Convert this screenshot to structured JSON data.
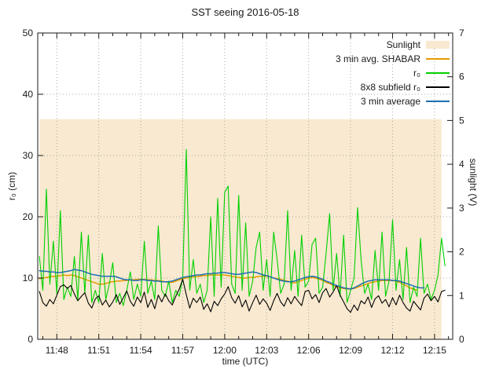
{
  "chart_data": {
    "type": "line",
    "title": "SST seeing 2016-05-18",
    "xlabel": "time (UTC)",
    "ylabel_left": "r₀ (cm)",
    "ylabel_right": "sunlight (V)",
    "grid": true,
    "legend": {
      "position": "inside-top-right"
    },
    "x_axis": {
      "start": "11:46:38",
      "end": "12:16:18",
      "major_ticks": [
        "11:48",
        "11:51",
        "11:54",
        "11:57",
        "12:00",
        "12:03",
        "12:06",
        "12:09",
        "12:12",
        "12:15"
      ],
      "minor_tick_interval_s": 60
    },
    "y_left": {
      "min": 0,
      "max": 50,
      "ticks": [
        0,
        10,
        20,
        30,
        40,
        50
      ]
    },
    "y_right": {
      "min": 0,
      "max": 7,
      "ticks": [
        0,
        1,
        2,
        3,
        4,
        5,
        6,
        7
      ]
    },
    "sample_interval_s": 15,
    "series": [
      {
        "name": "Sunlight",
        "slug": "sunlight",
        "axis": "right",
        "style": "area",
        "color": "#f8e9d0",
        "constant_value": 5.03,
        "start": "11:46:45",
        "end": "12:15:30"
      },
      {
        "name": "3 min avg. SHABAR",
        "slug": "shabar-avg",
        "axis": "left",
        "style": "line",
        "color": "#e69b00",
        "start": "11:46:45",
        "interval_s": 15,
        "values": [
          9.9,
          10.0,
          10.1,
          10.2,
          10.3,
          10.3,
          10.4,
          10.5,
          10.4,
          10.5,
          10.4,
          10.2,
          10.0,
          9.8,
          9.6,
          9.4,
          9.2,
          9.0,
          9.0,
          9.1,
          9.3,
          9.4,
          9.5,
          9.5,
          9.6,
          9.6,
          9.7,
          9.7,
          9.8,
          9.8,
          9.8,
          9.7,
          9.7,
          9.6,
          9.6,
          9.5,
          9.4,
          9.3,
          9.3,
          9.5,
          9.7,
          9.9,
          10.0,
          10.1,
          10.2,
          10.2,
          10.3,
          10.4,
          10.4,
          10.5,
          10.5,
          10.5,
          10.5,
          10.5,
          10.4,
          10.3,
          10.2,
          10.1,
          10.0,
          10.0,
          10.1,
          10.1,
          10.2,
          10.3,
          10.3,
          10.3,
          10.2,
          10.0,
          9.9,
          9.8,
          9.6,
          9.5,
          9.3,
          9.2,
          9.4,
          9.6,
          9.8,
          10.0,
          10.1,
          10.0,
          9.8,
          9.6,
          9.3,
          9.1,
          8.8,
          8.6,
          8.4,
          8.3,
          8.2,
          8.2,
          8.3,
          8.5,
          8.7,
          8.9,
          9.1,
          9.3,
          9.4,
          9.5,
          9.6,
          9.6,
          9.6,
          9.6,
          9.5,
          9.3,
          9.0,
          8.7,
          8.4,
          8.2,
          8.0
        ]
      },
      {
        "name": "r₀",
        "slug": "r0",
        "axis": "left",
        "style": "line",
        "color": "#00d000",
        "start": "11:46:45",
        "interval_s": 15,
        "values": [
          13.5,
          8.0,
          24.5,
          9.0,
          16.0,
          7.5,
          21.0,
          6.5,
          8.5,
          7.0,
          13.5,
          6.5,
          17.5,
          7.5,
          17.0,
          6.0,
          8.0,
          6.0,
          14.0,
          6.5,
          9.0,
          12.5,
          6.0,
          7.5,
          5.5,
          8.0,
          11.0,
          6.5,
          9.0,
          7.0,
          16.0,
          7.5,
          9.5,
          6.5,
          18.5,
          8.0,
          7.0,
          9.5,
          6.0,
          8.0,
          7.0,
          10.0,
          31.0,
          8.0,
          13.0,
          7.5,
          9.0,
          6.0,
          8.0,
          20.0,
          7.0,
          23.0,
          8.5,
          24.0,
          25.0,
          9.0,
          7.5,
          23.5,
          8.0,
          19.0,
          7.0,
          9.5,
          15.0,
          17.5,
          8.0,
          13.0,
          7.0,
          17.5,
          13.0,
          7.5,
          9.0,
          21.0,
          8.0,
          14.5,
          7.0,
          17.0,
          8.5,
          9.5,
          15.5,
          16.5,
          7.5,
          8.5,
          14.0,
          20.5,
          8.0,
          14.0,
          7.0,
          17.0,
          6.0,
          8.0,
          10.0,
          21.5,
          13.0,
          7.5,
          9.0,
          6.5,
          14.5,
          8.0,
          17.5,
          7.0,
          9.5,
          19.5,
          8.0,
          13.0,
          6.5,
          15.0,
          6.0,
          8.5,
          7.0,
          16.5,
          7.5,
          9.0,
          6.5,
          8.0,
          10.5,
          16.5,
          12.0
        ]
      },
      {
        "name": "8x8 subfield r₀",
        "slug": "r0-8x8",
        "axis": "left",
        "style": "line",
        "color": "#000000",
        "start": "11:46:45",
        "interval_s": 15,
        "values": [
          7.8,
          6.0,
          5.4,
          6.5,
          5.8,
          7.2,
          8.6,
          8.9,
          8.3,
          8.8,
          7.4,
          6.3,
          7.0,
          7.6,
          5.9,
          5.1,
          6.6,
          7.1,
          5.6,
          6.4,
          5.3,
          6.1,
          7.3,
          5.7,
          6.8,
          7.9,
          6.2,
          5.4,
          6.9,
          6.0,
          7.7,
          5.2,
          6.5,
          5.0,
          7.2,
          6.1,
          7.4,
          6.3,
          5.6,
          7.0,
          8.2,
          9.8,
          7.3,
          5.1,
          6.7,
          6.0,
          6.9,
          4.9,
          5.8,
          4.5,
          6.2,
          5.5,
          6.6,
          7.4,
          8.6,
          6.8,
          5.9,
          7.1,
          5.3,
          6.4,
          4.6,
          6.0,
          7.2,
          5.7,
          6.6,
          5.9,
          4.7,
          6.3,
          7.5,
          6.1,
          5.4,
          6.8,
          5.8,
          7.0,
          6.2,
          5.5,
          7.8,
          8.0,
          6.6,
          7.3,
          6.0,
          7.6,
          8.3,
          6.9,
          7.7,
          8.8,
          7.2,
          6.1,
          5.0,
          4.4,
          5.6,
          4.7,
          6.3,
          5.8,
          6.9,
          5.2,
          6.6,
          7.1,
          5.9,
          6.5,
          5.3,
          6.8,
          5.6,
          7.2,
          6.0,
          5.1,
          4.6,
          6.2,
          5.5,
          4.8,
          6.7,
          7.4,
          6.3,
          7.0,
          6.1,
          7.8,
          8.0
        ]
      },
      {
        "name": "3 min average",
        "slug": "avg-3min",
        "axis": "left",
        "style": "line",
        "color": "#1f6fb0",
        "start": "11:46:45",
        "interval_s": 15,
        "values": [
          11.2,
          11.1,
          11.1,
          11.0,
          11.0,
          10.9,
          10.9,
          11.0,
          11.1,
          11.2,
          11.4,
          11.3,
          11.2,
          11.0,
          10.8,
          10.6,
          10.5,
          10.4,
          10.3,
          10.3,
          10.3,
          10.3,
          10.2,
          10.0,
          9.8,
          9.7,
          9.7,
          9.6,
          9.6,
          9.7,
          9.7,
          9.6,
          9.6,
          9.5,
          9.5,
          9.4,
          9.4,
          9.4,
          9.5,
          9.7,
          9.9,
          10.1,
          10.2,
          10.3,
          10.4,
          10.5,
          10.5,
          10.6,
          10.7,
          10.7,
          10.8,
          10.8,
          10.9,
          10.9,
          10.8,
          10.7,
          10.6,
          10.6,
          10.7,
          10.8,
          10.9,
          11.0,
          10.9,
          10.7,
          10.5,
          10.4,
          10.2,
          10.0,
          9.8,
          9.6,
          9.5,
          9.4,
          9.4,
          9.5,
          9.7,
          9.9,
          10.1,
          10.2,
          10.3,
          10.2,
          10.0,
          9.8,
          9.5,
          9.3,
          9.0,
          8.8,
          8.6,
          8.4,
          8.3,
          8.2,
          8.4,
          8.7,
          9.0,
          9.3,
          9.5,
          9.6,
          9.7,
          9.7,
          9.7,
          9.7,
          9.7,
          9.6,
          9.6,
          9.5,
          9.3,
          9.1,
          8.9,
          8.7,
          8.5,
          8.4,
          8.4
        ]
      }
    ]
  }
}
